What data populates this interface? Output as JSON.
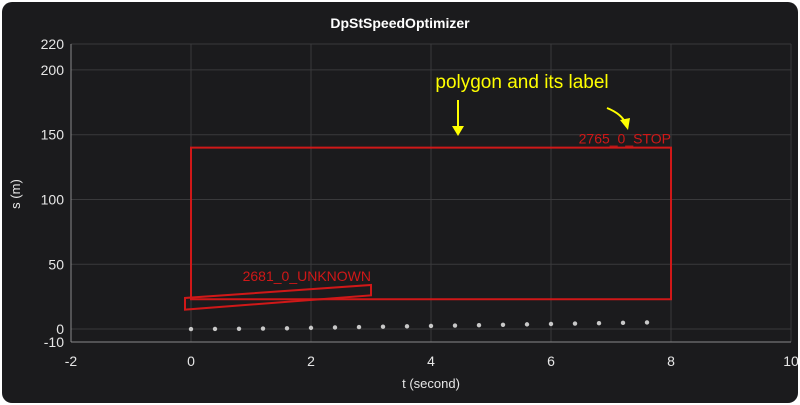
{
  "chart_data": {
    "type": "scatter",
    "title": "DpStSpeedOptimizer",
    "xlabel": "t (second)",
    "ylabel": "s (m)",
    "xlim": [
      -2,
      10
    ],
    "ylim": [
      -10,
      220
    ],
    "x_ticks": [
      -2,
      0,
      2,
      4,
      6,
      8,
      10
    ],
    "y_ticks": [
      -10,
      0,
      50,
      100,
      150,
      200,
      220
    ],
    "grid": true,
    "colors": {
      "background": "#1b1b1d",
      "polygon": "#d01818",
      "points": "#c8c8c8",
      "annotation": "#ffff00"
    },
    "series": [
      {
        "x": [
          0,
          0.4,
          0.8,
          1.2,
          1.6,
          2.0,
          2.4,
          2.8,
          3.2,
          3.6,
          4.0,
          4.4,
          4.8,
          5.2,
          5.6,
          6.0,
          6.4,
          6.8,
          7.2,
          7.6
        ],
        "y": [
          0,
          0.1,
          0.2,
          0.4,
          0.6,
          0.9,
          1.2,
          1.5,
          1.8,
          2.1,
          2.4,
          2.7,
          3.0,
          3.3,
          3.6,
          3.9,
          4.2,
          4.5,
          4.8,
          5.1
        ]
      }
    ],
    "polygons": [
      {
        "label": "2765_0_STOP",
        "points": [
          [
            0,
            140
          ],
          [
            8,
            140
          ],
          [
            8,
            23
          ],
          [
            0,
            23
          ]
        ]
      },
      {
        "label": "2681_0_UNKNOWN",
        "points": [
          [
            -0.1,
            15
          ],
          [
            -0.1,
            24
          ],
          [
            3.0,
            34
          ],
          [
            3.0,
            26
          ]
        ]
      }
    ],
    "annotations": [
      {
        "text": "polygon and its label"
      }
    ]
  }
}
